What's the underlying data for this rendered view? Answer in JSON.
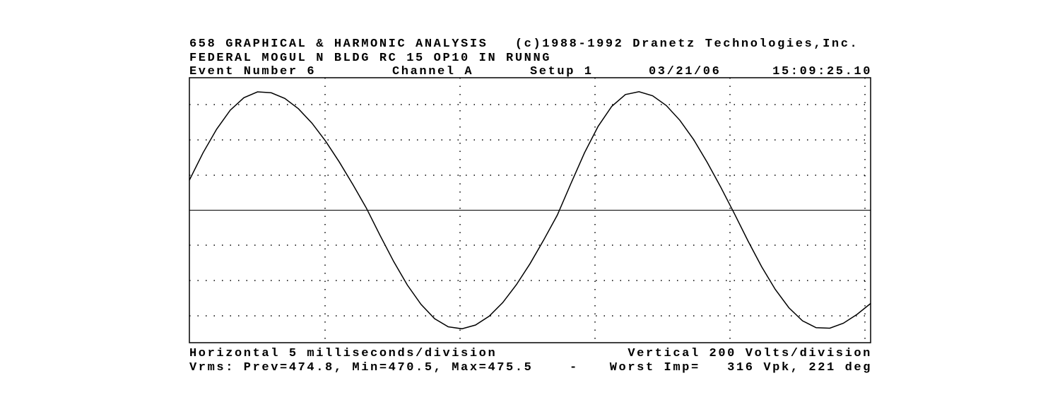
{
  "chart_data": {
    "type": "line",
    "title": "658 GRAPHICAL & HARMONIC ANALYSIS   (c)1988-1992 Dranetz Technologies,Inc.",
    "subtitle": "FEDERAL MOGUL N BLDG RC 15 OP10 IN RUNNG",
    "event": "Event Number 6",
    "channel": "Channel A",
    "setup": "Setup 1",
    "date": "03/21/06",
    "time": "15:09:25.10",
    "x_label": "Horizontal 5 milliseconds/division",
    "y_label": "Vertical 200 Volts/division",
    "vrms": "Vrms: Prev=474.8, Min=470.5, Max=475.5",
    "separator": "-",
    "worst_impulse": "Worst Imp=   316 Vpk, 221 deg",
    "color": "#000000",
    "xlim": [
      0,
      25
    ],
    "ylim": [
      -750,
      750
    ],
    "x": [
      0,
      0.5,
      1,
      1.5,
      2,
      2.5,
      3,
      3.5,
      4,
      4.5,
      5,
      5.5,
      6,
      6.5,
      7,
      7.5,
      8,
      8.5,
      9,
      9.5,
      10,
      10.5,
      11,
      11.5,
      12,
      12.5,
      13,
      13.5,
      14,
      14.5,
      15,
      15.5,
      16,
      16.5,
      17,
      17.5,
      18,
      18.5,
      19,
      19.5,
      20,
      20.5,
      21,
      21.5,
      22,
      22.5,
      23,
      23.5,
      24,
      24.5,
      25
    ],
    "values": [
      170,
      325,
      459,
      566,
      637,
      670,
      665,
      633,
      575,
      493,
      391,
      273,
      145,
      11,
      -143,
      -291,
      -424,
      -533,
      -614,
      -660,
      -671,
      -650,
      -600,
      -523,
      -422,
      -303,
      -169,
      -28,
      150,
      325,
      475,
      588,
      655,
      671,
      648,
      593,
      509,
      401,
      272,
      131,
      -19,
      -174,
      -320,
      -448,
      -552,
      -626,
      -665,
      -668,
      -640,
      -590,
      -528
    ]
  }
}
